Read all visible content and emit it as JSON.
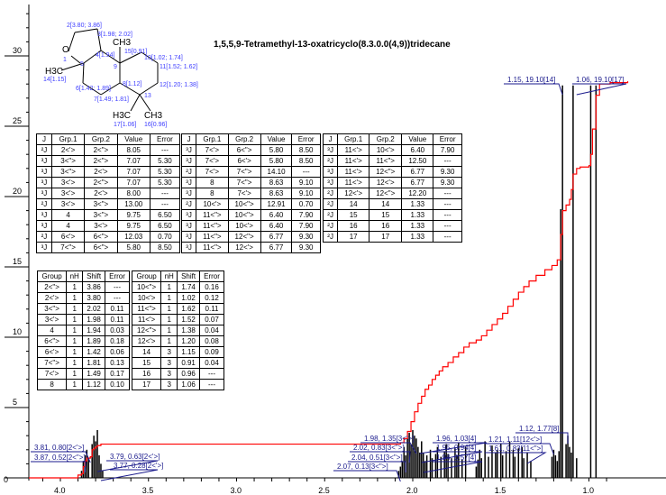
{
  "title": "1,5,5,9-Tetramethyl-13-oxatricyclo(8.3.0.0(4,9))tridecane",
  "structure": {
    "atoms": [
      "2[3.80; 3.86]",
      "3[1.98; 2.02]",
      "4[1.94]",
      "15[0.91]",
      "10[1.02; 1.74]",
      "11[1.52; 1.62]",
      "12[1.20; 1.38]",
      "8[1.12]",
      "6[1.42; 1.89]",
      "7[1.49; 1.81]",
      "13",
      "14[1.15]",
      "17[1.06]",
      "16[0.96]",
      "O",
      "1",
      "5",
      "9"
    ],
    "groups": [
      "CH3",
      "H3C",
      "H3C",
      "CH3"
    ]
  },
  "j_tables": [
    {
      "headers": [
        "J",
        "Grp.1",
        "Grp.2",
        "Value",
        "Error"
      ],
      "rows": [
        [
          "²J",
          "2<'>",
          "2<\">",
          "8.05",
          "---"
        ],
        [
          "³J",
          "3<\">",
          "2<\">",
          "7.07",
          "5.30"
        ],
        [
          "³J",
          "3<\">",
          "2<'>",
          "7.07",
          "5.30"
        ],
        [
          "³J",
          "3<'>",
          "2<\">",
          "7.07",
          "5.30"
        ],
        [
          "³J",
          "3<'>",
          "2<'>",
          "8.00",
          "---"
        ],
        [
          "²J",
          "3<'>",
          "3<\">",
          "13.00",
          "---"
        ],
        [
          "³J",
          "4",
          "3<\">",
          "9.75",
          "6.50"
        ],
        [
          "³J",
          "4",
          "3<'>",
          "9.75",
          "6.50"
        ],
        [
          "²J",
          "6<'>",
          "6<\">",
          "12.03",
          "0.70"
        ],
        [
          "³J",
          "7<\">",
          "6<\">",
          "5.80",
          "8.50"
        ]
      ]
    },
    {
      "headers": [
        "J",
        "Grp.1",
        "Grp.2",
        "Value",
        "Error"
      ],
      "rows": [
        [
          "³J",
          "7<'>",
          "6<\">",
          "5.80",
          "8.50"
        ],
        [
          "³J",
          "7<'>",
          "6<'>",
          "5.80",
          "8.50"
        ],
        [
          "²J",
          "7<'>",
          "7<\">",
          "14.10",
          "---"
        ],
        [
          "³J",
          "8",
          "7<\">",
          "8.63",
          "9.10"
        ],
        [
          "³J",
          "8",
          "7<'>",
          "8.63",
          "9.10"
        ],
        [
          "²J",
          "10<'>",
          "10<\">",
          "12.91",
          "0.70"
        ],
        [
          "³J",
          "11<\">",
          "10<\">",
          "6.40",
          "7.90"
        ],
        [
          "³J",
          "11<\">",
          "10<'>",
          "6.40",
          "7.90"
        ],
        [
          "³J",
          "11<\">",
          "12<\">",
          "6.77",
          "9.30"
        ],
        [
          "³J",
          "11<\">",
          "12<'>",
          "6.77",
          "9.30"
        ]
      ]
    },
    {
      "headers": [
        "J",
        "Grp.1",
        "Grp.2",
        "Value",
        "Error"
      ],
      "rows": [
        [
          "³J",
          "11<'>",
          "10<'>",
          "6.40",
          "7.90"
        ],
        [
          "²J",
          "11<'>",
          "11<\">",
          "12.50",
          "---"
        ],
        [
          "³J",
          "11<'>",
          "12<\">",
          "6.77",
          "9.30"
        ],
        [
          "³J",
          "11<'>",
          "12<'>",
          "6.77",
          "9.30"
        ],
        [
          "²J",
          "12<'>",
          "12<\">",
          "12.20",
          "---"
        ],
        [
          "²J",
          "14",
          "14",
          "1.33",
          "---"
        ],
        [
          "²J",
          "15",
          "15",
          "1.33",
          "---"
        ],
        [
          "²J",
          "16",
          "16",
          "1.33",
          "---"
        ],
        [
          "²J",
          "17",
          "17",
          "1.33",
          "---"
        ]
      ]
    }
  ],
  "shift_tables": [
    {
      "headers": [
        "Group",
        "nH",
        "Shift",
        "Error"
      ],
      "rows": [
        [
          "2<\">",
          "1",
          "3.86",
          "---"
        ],
        [
          "2<'>",
          "1",
          "3.80",
          "---"
        ],
        [
          "3<\">",
          "1",
          "2.02",
          "0.11"
        ],
        [
          "3<'>",
          "1",
          "1.98",
          "0.11"
        ],
        [
          "4",
          "1",
          "1.94",
          "0.03"
        ],
        [
          "6<\">",
          "1",
          "1.89",
          "0.18"
        ],
        [
          "6<'>",
          "1",
          "1.42",
          "0.06"
        ],
        [
          "7<\">",
          "1",
          "1.81",
          "0.13"
        ],
        [
          "7<'>",
          "1",
          "1.49",
          "0.17"
        ],
        [
          "8",
          "1",
          "1.12",
          "0.10"
        ]
      ]
    },
    {
      "headers": [
        "Group",
        "nH",
        "Shift",
        "Error"
      ],
      "rows": [
        [
          "10<\">",
          "1",
          "1.74",
          "0.16"
        ],
        [
          "10<'>",
          "1",
          "1.02",
          "0.12"
        ],
        [
          "11<\">",
          "1",
          "1.62",
          "0.11"
        ],
        [
          "11<'>",
          "1",
          "1.52",
          "0.07"
        ],
        [
          "12<\">",
          "1",
          "1.38",
          "0.04"
        ],
        [
          "12<'>",
          "1",
          "1.20",
          "0.08"
        ],
        [
          "14",
          "3",
          "1.15",
          "0.09"
        ],
        [
          "15",
          "3",
          "0.91",
          "0.04"
        ],
        [
          "16",
          "3",
          "0.96",
          "---"
        ],
        [
          "17",
          "3",
          "1.06",
          "---"
        ]
      ]
    }
  ],
  "chart_data": {
    "type": "line",
    "title": "1,5,5,9-Tetramethyl-13-oxatricyclo(8.3.0.0(4,9))tridecane",
    "xlabel": "",
    "ylabel": "",
    "xlim": [
      4.18,
      0.78
    ],
    "ylim": [
      0,
      33
    ],
    "x_ticks": [
      "4.0",
      "3.5",
      "3.0",
      "2.5",
      "2.0",
      "1.5",
      "1.0"
    ],
    "y_ticks": [
      "0",
      "5",
      "10",
      "15",
      "20",
      "25",
      "30"
    ],
    "colors": {
      "spectrum": "#000000",
      "integral": "#ff0000",
      "labels": "#1a1a8c"
    },
    "peaks": [
      [
        3.88,
        0.5
      ],
      [
        3.87,
        1.2
      ],
      [
        3.86,
        1.6
      ],
      [
        3.85,
        2.0
      ],
      [
        3.84,
        1.4
      ],
      [
        3.82,
        2.4
      ],
      [
        3.81,
        3.0
      ],
      [
        3.8,
        2.6
      ],
      [
        3.79,
        3.4
      ],
      [
        3.78,
        1.6
      ],
      [
        3.77,
        1.0
      ],
      [
        3.76,
        0.5
      ],
      [
        2.08,
        0.5
      ],
      [
        2.07,
        0.8
      ],
      [
        2.06,
        1.2
      ],
      [
        2.05,
        2.2
      ],
      [
        2.04,
        1.6
      ],
      [
        2.03,
        2.8
      ],
      [
        2.02,
        3.2
      ],
      [
        2.01,
        2.4
      ],
      [
        2.0,
        3.4
      ],
      [
        1.99,
        3.0
      ],
      [
        1.98,
        2.8
      ],
      [
        1.97,
        2.2
      ],
      [
        1.96,
        1.8
      ],
      [
        1.95,
        2.6
      ],
      [
        1.94,
        1.8
      ],
      [
        1.93,
        1.2
      ],
      [
        1.92,
        1.6
      ],
      [
        1.9,
        2.0
      ],
      [
        1.89,
        1.4
      ],
      [
        1.87,
        1.7
      ],
      [
        1.86,
        2.2
      ],
      [
        1.84,
        1.5
      ],
      [
        1.82,
        1.9
      ],
      [
        1.81,
        2.4
      ],
      [
        1.8,
        1.7
      ],
      [
        1.78,
        1.4
      ],
      [
        1.76,
        2.1
      ],
      [
        1.75,
        1.6
      ],
      [
        1.74,
        2.5
      ],
      [
        1.72,
        1.3
      ],
      [
        1.7,
        2.2
      ],
      [
        1.64,
        0.8
      ],
      [
        1.63,
        1.3
      ],
      [
        1.62,
        2.0
      ],
      [
        1.61,
        1.4
      ],
      [
        1.59,
        2.6
      ],
      [
        1.57,
        1.5
      ],
      [
        1.55,
        2.3
      ],
      [
        1.53,
        1.8
      ],
      [
        1.52,
        2.0
      ],
      [
        1.5,
        2.4
      ],
      [
        1.49,
        1.6
      ],
      [
        1.47,
        1.9
      ],
      [
        1.45,
        2.6
      ],
      [
        1.43,
        2.0
      ],
      [
        1.42,
        1.5
      ],
      [
        1.4,
        2.1
      ],
      [
        1.38,
        2.2
      ],
      [
        1.37,
        1.4
      ],
      [
        1.35,
        1.8
      ],
      [
        1.33,
        1.2
      ],
      [
        1.21,
        1.5
      ],
      [
        1.2,
        2.0
      ],
      [
        1.19,
        1.6
      ],
      [
        1.18,
        1.2
      ],
      [
        1.17,
        1.9
      ],
      [
        1.16,
        19.1
      ],
      [
        1.15,
        27.9
      ],
      [
        1.13,
        2.4
      ],
      [
        1.12,
        3.0
      ],
      [
        1.11,
        2.2
      ],
      [
        1.1,
        1.8
      ],
      [
        1.09,
        27.9
      ],
      [
        1.07,
        1.4
      ],
      [
        0.99,
        27.9
      ],
      [
        0.96,
        27.9
      ]
    ],
    "integral": [
      [
        4.18,
        0
      ],
      [
        3.92,
        0
      ],
      [
        3.9,
        0.2
      ],
      [
        3.88,
        0.3
      ],
      [
        3.87,
        0.8
      ],
      [
        3.86,
        1.2
      ],
      [
        3.85,
        1.4
      ],
      [
        3.83,
        1.5
      ],
      [
        3.82,
        2.0
      ],
      [
        3.81,
        2.1
      ],
      [
        3.8,
        2.2
      ],
      [
        3.79,
        2.3
      ],
      [
        3.77,
        2.4
      ],
      [
        3.76,
        2.4
      ],
      [
        2.09,
        2.4
      ],
      [
        2.07,
        2.5
      ],
      [
        2.05,
        2.8
      ],
      [
        2.03,
        3.3
      ],
      [
        2.01,
        4.0
      ],
      [
        1.99,
        4.7
      ],
      [
        1.97,
        5.3
      ],
      [
        1.95,
        5.8
      ],
      [
        1.93,
        6.3
      ],
      [
        1.91,
        6.6
      ],
      [
        1.89,
        7.0
      ],
      [
        1.87,
        7.3
      ],
      [
        1.85,
        7.6
      ],
      [
        1.83,
        7.9
      ],
      [
        1.8,
        8.2
      ],
      [
        1.77,
        8.6
      ],
      [
        1.74,
        8.9
      ],
      [
        1.71,
        9.3
      ],
      [
        1.68,
        9.6
      ],
      [
        1.64,
        9.8
      ],
      [
        1.61,
        10.1
      ],
      [
        1.58,
        10.5
      ],
      [
        1.55,
        10.9
      ],
      [
        1.52,
        11.3
      ],
      [
        1.49,
        11.7
      ],
      [
        1.46,
        12.2
      ],
      [
        1.43,
        12.7
      ],
      [
        1.4,
        13.2
      ],
      [
        1.37,
        13.6
      ],
      [
        1.34,
        14.0
      ],
      [
        1.3,
        14.4
      ],
      [
        1.25,
        14.8
      ],
      [
        1.21,
        15.1
      ],
      [
        1.18,
        15.5
      ],
      [
        1.16,
        17.3
      ],
      [
        1.15,
        19.0
      ],
      [
        1.13,
        19.4
      ],
      [
        1.11,
        19.8
      ],
      [
        1.1,
        20.5
      ],
      [
        1.09,
        21.6
      ],
      [
        1.07,
        22.0
      ],
      [
        1.05,
        22.1
      ],
      [
        1.0,
        22.2
      ],
      [
        0.99,
        23.0
      ],
      [
        0.98,
        24.8
      ],
      [
        0.96,
        27.2
      ],
      [
        0.94,
        28.0
      ],
      [
        0.88,
        28.1
      ],
      [
        0.78,
        28.2
      ]
    ],
    "annotations": [
      "3.81, 0.80[2<'>]",
      "3.87, 0.52[2<\">]",
      "3.79, 0.63[2<'>]",
      "3.77, 0.28[2<'>]",
      "1.98, 1.35[3<'>]",
      "2.02, 0.83[3<\">]",
      "2.04, 0.51[3<\">]",
      "2.07, 0.13[3<\">]",
      "1.96, 1.03[4]",
      "1.95, 0.94[4]",
      "1.94, 0.57[4]",
      "1.21, 1.11[12<'>]",
      "1.61, 0.83[11<\">]",
      "1.12, 1.77[8]",
      "1.15, 19.10[14]",
      "1.06, 19.10[17]"
    ]
  }
}
